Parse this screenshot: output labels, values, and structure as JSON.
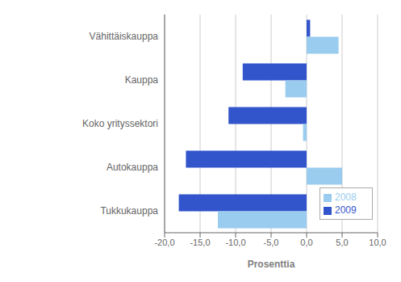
{
  "chart_data": {
    "type": "bar",
    "orientation": "horizontal",
    "categories": [
      "Tukkukauppa",
      "Autokauppa",
      "Koko yrityssektori",
      "Kauppa",
      "Vähittäiskauppa"
    ],
    "series": [
      {
        "name": "2009",
        "color": "#3355CC",
        "values": [
          -18.0,
          -17.0,
          -11.0,
          -9.0,
          0.5
        ]
      },
      {
        "name": "2008",
        "color": "#99CCEE",
        "values": [
          -12.5,
          5.0,
          -0.5,
          -3.0,
          4.5
        ]
      }
    ],
    "xlabel": "Prosenttia",
    "xlim": [
      -20.0,
      10.0
    ],
    "xticks": [
      {
        "value": -20.0,
        "label": "-20,0"
      },
      {
        "value": -15.0,
        "label": "-15,0"
      },
      {
        "value": -10.0,
        "label": "-10,0"
      },
      {
        "value": -5.0,
        "label": "-5,0"
      },
      {
        "value": 0.0,
        "label": "0,0"
      },
      {
        "value": 5.0,
        "label": "5,0"
      },
      {
        "value": 10.0,
        "label": "10,0"
      }
    ],
    "grid": true,
    "legend": "lower right"
  }
}
